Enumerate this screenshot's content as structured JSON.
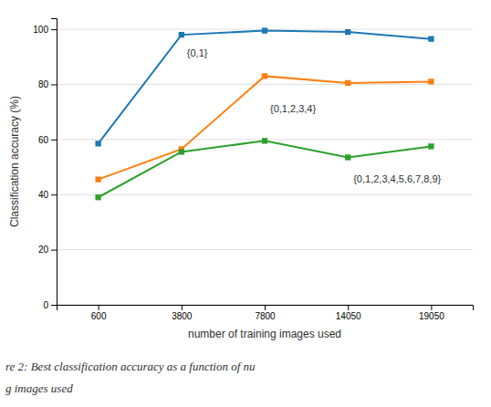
{
  "chart_data": {
    "type": "line",
    "categories": [
      "600",
      "3800",
      "7800",
      "14050",
      "19050"
    ],
    "series": [
      {
        "values": [
          58.5,
          98.0,
          99.5,
          99.0,
          96.5
        ],
        "marker": "square"
      },
      {
        "values": [
          45.5,
          56.5,
          83.0,
          80.5,
          81.0
        ],
        "marker": "square"
      },
      {
        "values": [
          39.0,
          55.5,
          59.5,
          53.5,
          57.5
        ],
        "marker": "square"
      }
    ],
    "annotations": [
      {
        "text": "{0,1}",
        "x": "3800",
        "y": 91.5
      },
      {
        "text": "{0,1,2,3,4}",
        "x": "7800",
        "y": 71.0
      },
      {
        "text": "{0,1,2,3,4,5,6,7,8,9}",
        "x": "14050",
        "y": 45.5
      }
    ],
    "xlabel": "number of training images used",
    "ylabel": "Classification accuracy (%)",
    "ylim": [
      0,
      104
    ],
    "yticks": [
      0,
      20,
      40,
      60,
      80,
      100
    ],
    "grid": true,
    "caption": [
      "re 2: Best classification accuracy as a function of nu",
      "g images used"
    ]
  }
}
